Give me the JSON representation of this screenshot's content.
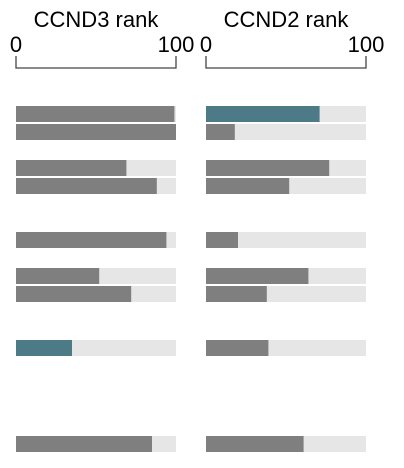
{
  "chart_data": [
    {
      "type": "bar",
      "title": "CCND3 rank",
      "xlim": [
        0,
        100
      ],
      "ticks": [
        "0",
        "100"
      ],
      "values": [
        99,
        100,
        69,
        88,
        94,
        52,
        72,
        35,
        85
      ],
      "highlight": [
        false,
        false,
        false,
        false,
        false,
        false,
        false,
        true,
        false
      ]
    },
    {
      "type": "bar",
      "title": "CCND2 rank",
      "xlim": [
        0,
        100
      ],
      "ticks": [
        "0",
        "100"
      ],
      "values": [
        71,
        18,
        77,
        52,
        20,
        64,
        38,
        39,
        61
      ],
      "highlight": [
        true,
        false,
        false,
        false,
        false,
        false,
        false,
        false,
        false
      ]
    }
  ],
  "colors": {
    "bar": "#7f7f7f",
    "highlight": "#4d7a87",
    "track": "#e6e6e6"
  }
}
